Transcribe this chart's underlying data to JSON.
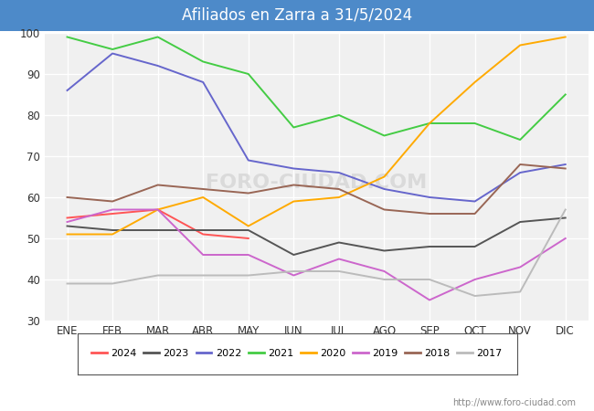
{
  "title": "Afiliados en Zarra a 31/5/2024",
  "title_bg_color": "#4d8ac9",
  "title_text_color": "white",
  "ylim": [
    30,
    100
  ],
  "yticks": [
    30,
    40,
    50,
    60,
    70,
    80,
    90,
    100
  ],
  "months": [
    "ENE",
    "FEB",
    "MAR",
    "ABR",
    "MAY",
    "JUN",
    "JUL",
    "AGO",
    "SEP",
    "OCT",
    "NOV",
    "DIC"
  ],
  "watermark": "FORO-CIUDAD.COM",
  "url": "http://www.foro-ciudad.com",
  "series": [
    {
      "label": "2024",
      "color": "#ff5555",
      "values": [
        55,
        56,
        57,
        51,
        50,
        null,
        null,
        null,
        null,
        null,
        null,
        null
      ]
    },
    {
      "label": "2023",
      "color": "#555555",
      "values": [
        53,
        52,
        52,
        52,
        52,
        46,
        49,
        47,
        48,
        48,
        54,
        55
      ]
    },
    {
      "label": "2022",
      "color": "#6666cc",
      "values": [
        86,
        95,
        92,
        88,
        69,
        67,
        66,
        62,
        60,
        59,
        66,
        68
      ]
    },
    {
      "label": "2021",
      "color": "#44cc44",
      "values": [
        99,
        96,
        99,
        93,
        90,
        77,
        80,
        75,
        78,
        78,
        74,
        85
      ]
    },
    {
      "label": "2020",
      "color": "#ffaa00",
      "values": [
        51,
        51,
        57,
        60,
        53,
        59,
        60,
        65,
        78,
        88,
        97,
        99
      ]
    },
    {
      "label": "2019",
      "color": "#cc66cc",
      "values": [
        54,
        57,
        57,
        46,
        46,
        41,
        45,
        42,
        35,
        40,
        43,
        50
      ]
    },
    {
      "label": "2018",
      "color": "#996655",
      "values": [
        60,
        59,
        63,
        62,
        61,
        63,
        62,
        57,
        56,
        56,
        68,
        67
      ]
    },
    {
      "label": "2017",
      "color": "#bbbbbb",
      "values": [
        39,
        39,
        41,
        41,
        41,
        42,
        42,
        40,
        40,
        36,
        37,
        57
      ]
    }
  ]
}
